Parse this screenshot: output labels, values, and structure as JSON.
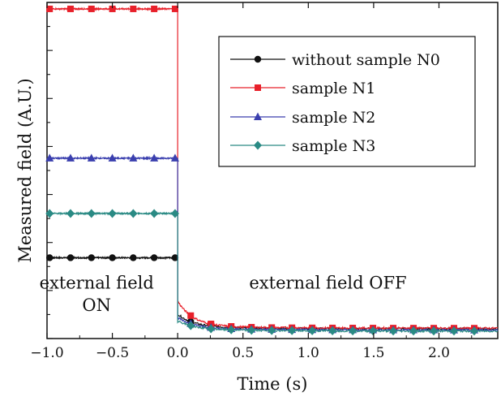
{
  "chart_data": {
    "type": "line",
    "xlabel": "Time (s)",
    "ylabel": "Measured field (A.U.)",
    "xlim": [
      -1.0,
      2.45
    ],
    "ylim": [
      -0.02,
      1.02
    ],
    "x_ticks": [
      -1.0,
      -0.5,
      0.0,
      0.5,
      1.0,
      1.5,
      2.0
    ],
    "x_tick_labels": [
      "-1.0",
      "-0.5",
      "0.0",
      "0.5",
      "1.0",
      "1.5",
      "2.0"
    ],
    "y_tick_labels": [],
    "legend_position": "top-right",
    "grid": false,
    "annotations": [
      {
        "text": "external field",
        "x": -0.62,
        "y": 0.135
      },
      {
        "text": "ON",
        "x": -0.62,
        "y": 0.065
      },
      {
        "text": "external field OFF",
        "x": 1.15,
        "y": 0.135
      }
    ],
    "switch_time": 0.0,
    "series": [
      {
        "name": "without sample N0",
        "color": "#111111",
        "marker": "circle",
        "on_level": 0.23,
        "off_level": 0.01,
        "drop_level": 0.05
      },
      {
        "name": "sample N1",
        "color": "#e8202a",
        "marker": "square",
        "on_level": 1.0,
        "off_level": 0.012,
        "drop_level": 0.09
      },
      {
        "name": "sample N2",
        "color": "#3a3fae",
        "marker": "triangle",
        "on_level": 0.538,
        "off_level": 0.006,
        "drop_level": 0.04
      },
      {
        "name": "sample N3",
        "color": "#2a8a84",
        "marker": "diamond",
        "on_level": 0.367,
        "off_level": 0.003,
        "drop_level": 0.03
      }
    ]
  }
}
